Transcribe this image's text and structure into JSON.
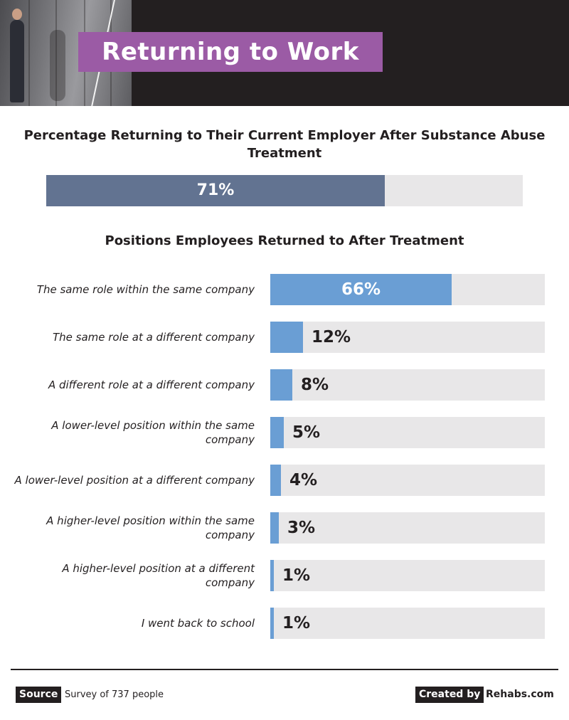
{
  "header": {
    "title": "Returning to Work"
  },
  "colors": {
    "accent": "#9b5ba5",
    "primary_bar": "#627391",
    "secondary_bar": "#6a9ed4",
    "track": "#e8e7e8",
    "dark": "#231f20"
  },
  "chart_data": [
    {
      "type": "bar",
      "title": "Percentage Returning to Their Current Employer After Substance Abuse Treatment",
      "values": [
        71
      ],
      "value_labels": [
        "71%"
      ],
      "ylim": [
        0,
        100
      ]
    },
    {
      "type": "bar",
      "orientation": "horizontal",
      "title": "Positions Employees Returned to After Treatment",
      "categories": [
        "The same role within the same company",
        "The same role at a different company",
        "A different role at a different company",
        "A lower-level position within the same company",
        "A lower-level position at a different company",
        "A higher-level position within the same company",
        "A higher-level position at a different company",
        "I went back to school"
      ],
      "values": [
        66,
        12,
        8,
        5,
        4,
        3,
        1,
        1
      ],
      "value_labels": [
        "66%",
        "12%",
        "8%",
        "5%",
        "4%",
        "3%",
        "1%",
        "1%"
      ],
      "ylim": [
        0,
        100
      ]
    }
  ],
  "footer": {
    "source_label": "Source",
    "source_text": "Survey of 737 people",
    "credit_label": "Created by",
    "credit_text": "Rehabs.com"
  }
}
